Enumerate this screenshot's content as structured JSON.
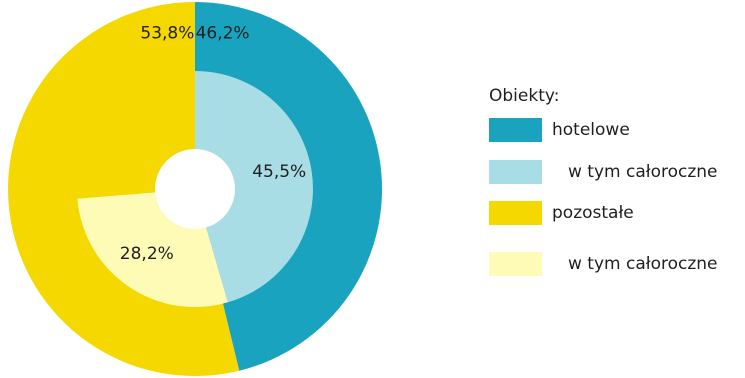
{
  "chart_data": {
    "type": "pie",
    "legend": {
      "title": "Obiekty:",
      "placement": "right"
    },
    "rings": [
      {
        "ring": "outer",
        "slices": [
          {
            "name": "hotelowe",
            "value": 46.2,
            "label": "46,2%",
            "color": "#1AA3BE"
          },
          {
            "name": "pozostałe",
            "value": 53.8,
            "label": "53,8%",
            "color": "#F5D800"
          }
        ]
      },
      {
        "ring": "inner",
        "slices": [
          {
            "name": "w tym całoroczne",
            "value": 45.5,
            "label": "45,5%",
            "color": "#A8DDE6"
          },
          {
            "name": "w tym całoroczne",
            "value": 28.2,
            "label": "28,2%",
            "color": "#FEFBB7"
          },
          {
            "name": "",
            "value": 26.3,
            "label": "",
            "color": "#F5D800"
          }
        ]
      }
    ],
    "legend_entries": [
      {
        "label": "hotelowe",
        "color": "#1AA3BE"
      },
      {
        "label": "w tym całoroczne",
        "color": "#A8DDE6"
      },
      {
        "label": "pozostałe",
        "color": "#F5D800"
      },
      {
        "label": "w tym całoroczne",
        "color": "#FEFBB7"
      }
    ]
  }
}
